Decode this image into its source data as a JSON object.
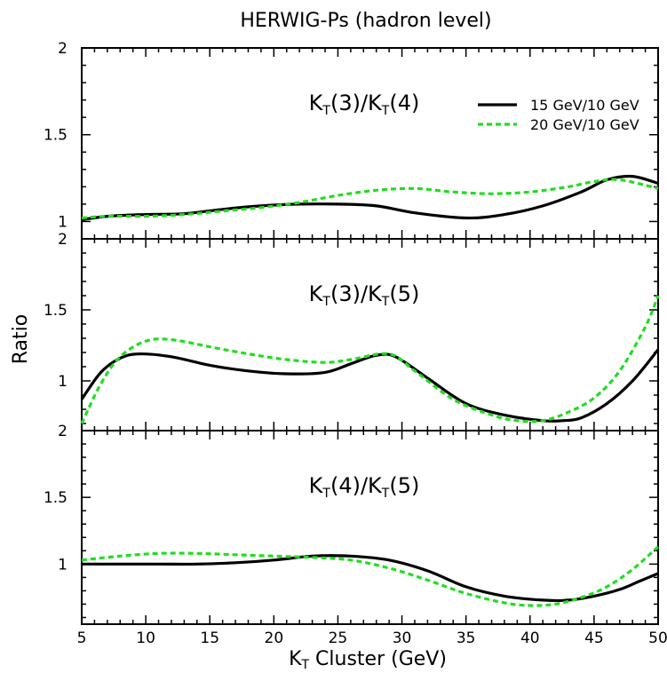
{
  "chart_data": {
    "type": "line",
    "title": "HERWIG-Ps (hadron level)",
    "xlabel_main": "K",
    "xlabel_sub": "T",
    "xlabel_rest": " Cluster (GeV)",
    "ylabel": "Ratio",
    "xlim": [
      5,
      50
    ],
    "x_ticks": [
      5,
      10,
      15,
      20,
      25,
      30,
      35,
      40,
      45,
      50
    ],
    "legend": {
      "placement": "top-right of first panel",
      "entries": [
        {
          "label": "15 GeV/10 GeV",
          "color": "#000000",
          "style": "solid"
        },
        {
          "label": "20 GeV/10 GeV",
          "color": "#22dd22",
          "style": "dashed"
        }
      ]
    },
    "panels": [
      {
        "label_parts": [
          "K",
          "T",
          "(3)/",
          "K",
          "T",
          "(4)"
        ],
        "ylim": [
          0.9,
          2.0
        ],
        "y_ticks": [
          1,
          1.5,
          2
        ],
        "y_tick_labels": [
          "1",
          "1.5",
          "2"
        ],
        "series": [
          {
            "color": "#000000",
            "style": "solid",
            "x": [
              5,
              7,
              10,
              13,
              16,
              19,
              22,
              25,
              28,
              31,
              35,
              38,
              41,
              44,
              46,
              48,
              50
            ],
            "y": [
              1.01,
              1.03,
              1.04,
              1.045,
              1.07,
              1.09,
              1.1,
              1.1,
              1.09,
              1.05,
              1.02,
              1.04,
              1.09,
              1.17,
              1.24,
              1.26,
              1.22
            ]
          },
          {
            "color": "#22dd22",
            "style": "dashed",
            "x": [
              5,
              7,
              10,
              13,
              16,
              19,
              22,
              25,
              28,
              31,
              34,
              37,
              40,
              43,
              45,
              47,
              50
            ],
            "y": [
              1.02,
              1.03,
              1.03,
              1.04,
              1.06,
              1.08,
              1.11,
              1.15,
              1.18,
              1.19,
              1.17,
              1.16,
              1.17,
              1.2,
              1.23,
              1.24,
              1.19
            ]
          }
        ]
      },
      {
        "label_parts": [
          "K",
          "T",
          "(3)/",
          "K",
          "T",
          "(5)"
        ],
        "ylim": [
          0.65,
          2.0
        ],
        "y_ticks": [
          1,
          1.5,
          2
        ],
        "y_tick_labels": [
          "1",
          "1.5",
          "2"
        ],
        "series": [
          {
            "color": "#000000",
            "style": "solid",
            "x": [
              5,
              6.5,
              8,
              9.5,
              12,
              15,
              18,
              21,
              24,
              26,
              28,
              29.5,
              32,
              35,
              38,
              41,
              42.5,
              44,
              46,
              48,
              50
            ],
            "y": [
              0.87,
              1.06,
              1.16,
              1.19,
              1.17,
              1.11,
              1.07,
              1.05,
              1.06,
              1.12,
              1.18,
              1.17,
              1.02,
              0.84,
              0.76,
              0.72,
              0.72,
              0.74,
              0.84,
              1.0,
              1.22
            ]
          },
          {
            "color": "#22dd22",
            "style": "dashed",
            "x": [
              5,
              6.5,
              8,
              10,
              12,
              15,
              18,
              21,
              24,
              26,
              29,
              31,
              34,
              37,
              39,
              41,
              43,
              45,
              47,
              49,
              50
            ],
            "y": [
              0.7,
              0.98,
              1.17,
              1.28,
              1.29,
              1.24,
              1.19,
              1.15,
              1.13,
              1.15,
              1.19,
              1.07,
              0.87,
              0.76,
              0.72,
              0.72,
              0.78,
              0.88,
              1.07,
              1.38,
              1.6
            ]
          }
        ]
      },
      {
        "label_parts": [
          "K",
          "T",
          "(4)/",
          "K",
          "T",
          "(5)"
        ],
        "ylim": [
          0.55,
          2.0
        ],
        "y_ticks": [
          1,
          1.5,
          2
        ],
        "y_tick_labels": [
          "1",
          "1.5",
          "2"
        ],
        "series": [
          {
            "color": "#000000",
            "style": "solid",
            "x": [
              5,
              8,
              11,
              14,
              17,
              20,
              23,
              26,
              29,
              32,
              35,
              38,
              41,
              43,
              45,
              47,
              48.5,
              50
            ],
            "y": [
              1.0,
              1.0,
              1.0,
              1.0,
              1.01,
              1.03,
              1.06,
              1.06,
              1.03,
              0.95,
              0.83,
              0.76,
              0.73,
              0.73,
              0.76,
              0.81,
              0.87,
              0.93
            ]
          },
          {
            "color": "#22dd22",
            "style": "dashed",
            "x": [
              5,
              8,
              11,
              14,
              17,
              20,
              23,
              26,
              29,
              32,
              35,
              38,
              40,
              42,
              44,
              46,
              48,
              50
            ],
            "y": [
              1.03,
              1.06,
              1.08,
              1.08,
              1.07,
              1.06,
              1.05,
              1.03,
              0.97,
              0.88,
              0.78,
              0.71,
              0.69,
              0.7,
              0.75,
              0.83,
              0.96,
              1.13
            ]
          }
        ]
      }
    ]
  }
}
